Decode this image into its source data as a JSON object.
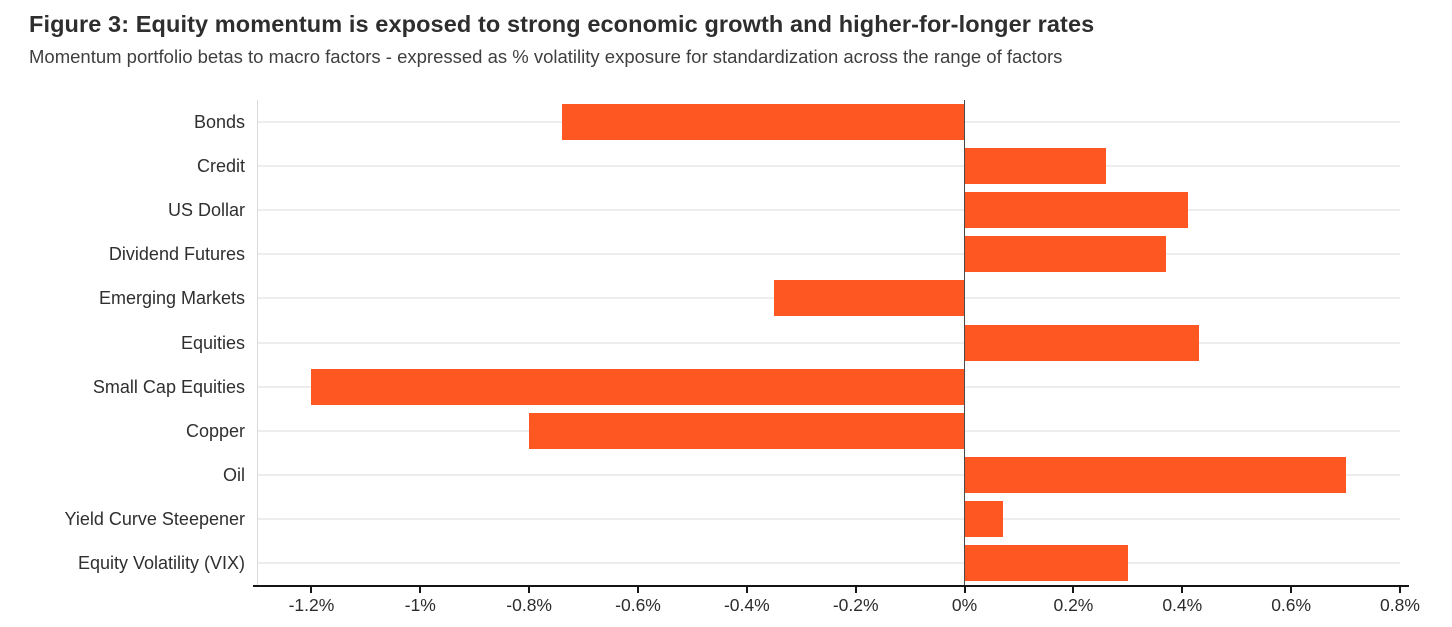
{
  "header": {
    "title": "Figure 3: Equity momentum is exposed to strong economic growth and higher-for-longer rates",
    "subtitle": "Momentum portfolio betas to macro factors - expressed as % volatility exposure for standardization across the range of factors"
  },
  "chart_data": {
    "type": "bar",
    "orientation": "horizontal",
    "title": "Figure 3: Equity momentum is exposed to strong economic growth and higher-for-longer rates",
    "subtitle": "Momentum portfolio betas to macro factors - expressed as % volatility exposure for standardization across the range of factors",
    "categories": [
      "Bonds",
      "Credit",
      "US Dollar",
      "Dividend Futures",
      "Emerging Markets",
      "Equities",
      "Small Cap Equities",
      "Copper",
      "Oil",
      "Yield Curve Steepener",
      "Equity Volatility (VIX)"
    ],
    "values": [
      -0.74,
      0.26,
      0.41,
      0.37,
      -0.35,
      0.43,
      -1.2,
      -0.8,
      0.7,
      0.07,
      0.3
    ],
    "unit": "%",
    "xlim": [
      -1.3,
      0.8
    ],
    "x_ticks": [
      -1.2,
      -1.0,
      -0.8,
      -0.6,
      -0.4,
      -0.2,
      0,
      0.2,
      0.4,
      0.6,
      0.8
    ],
    "x_tick_labels": [
      "-1.2%",
      "-1%",
      "-0.8%",
      "-0.6%",
      "-0.4%",
      "-0.2%",
      "0%",
      "0.2%",
      "0.4%",
      "0.6%",
      "0.8%"
    ],
    "grid": true,
    "legend": "none",
    "colors": {
      "bar": "#ff5722",
      "gridline": "#ededed",
      "zero_line": "#4a4a4a",
      "axis": "#151515",
      "title_text": "#2e2e2e",
      "subtitle_text": "#3f3f3f",
      "label_text": "#2f2f2f"
    }
  }
}
